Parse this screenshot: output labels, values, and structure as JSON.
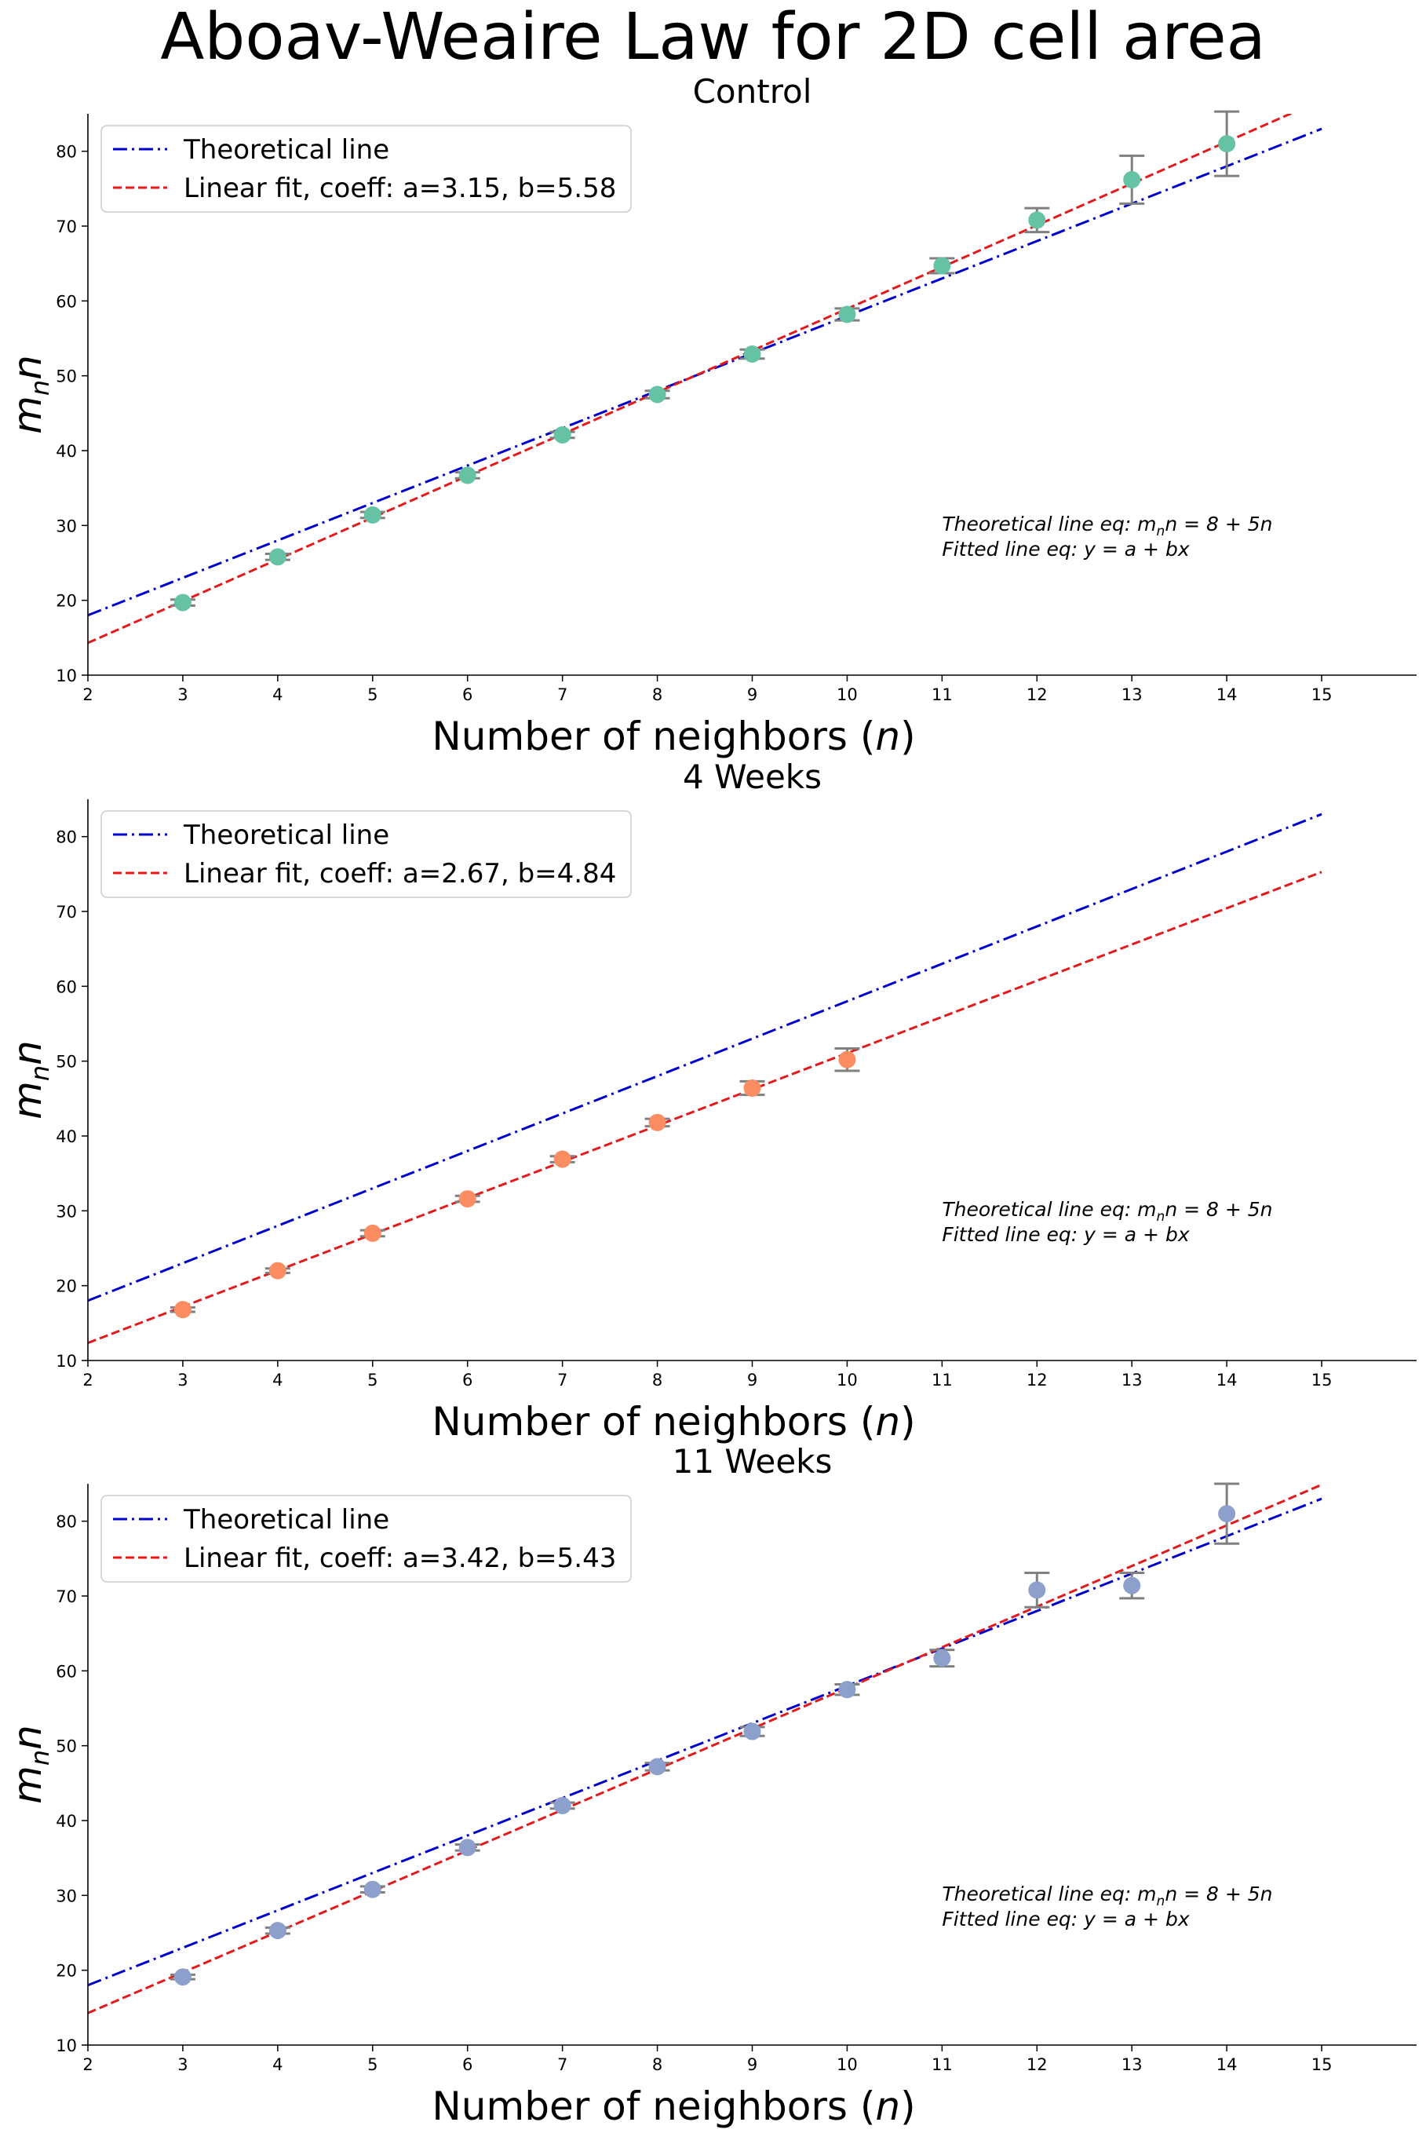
{
  "figure": {
    "title": "Aboav-Weaire Law for 2D cell area"
  },
  "chart_data": [
    {
      "type": "scatter",
      "title": "Control",
      "xlabel": "Number of neighbors (n)",
      "ylabel": "m_n n",
      "xlim": [
        2,
        16
      ],
      "ylim": [
        10,
        85
      ],
      "xticks": [
        2,
        3,
        4,
        5,
        6,
        7,
        8,
        9,
        10,
        11,
        12,
        13,
        14,
        15
      ],
      "yticks": [
        10,
        20,
        30,
        40,
        50,
        60,
        70,
        80
      ],
      "point_color": "#66c2a5",
      "points": {
        "x": [
          3,
          4,
          5,
          6,
          7,
          8,
          9,
          10,
          11,
          12,
          13,
          14
        ],
        "y": [
          19.7,
          25.8,
          31.4,
          36.7,
          42.1,
          47.5,
          52.9,
          58.2,
          64.7,
          70.8,
          76.2,
          81.0
        ],
        "err": [
          0.4,
          0.4,
          0.4,
          0.4,
          0.4,
          0.5,
          0.6,
          0.8,
          1.0,
          1.6,
          3.2,
          4.3
        ]
      },
      "series": [
        {
          "name": "Theoretical line",
          "style": "dashdot",
          "color": "#0000cc",
          "a": 8,
          "b": 5,
          "x_range": [
            2,
            15
          ]
        },
        {
          "name": "Linear fit, coeff: a=3.15, b=5.58",
          "style": "dashed",
          "color": "#e31a1c",
          "a": 3.15,
          "b": 5.58,
          "x_range": [
            2,
            15
          ]
        }
      ],
      "annotation": [
        "Theoretical line eq: m",
        "n",
        "n = 8 + 5n",
        "Fitted line eq: y = a + bx"
      ],
      "legend_position": "upper-left"
    },
    {
      "type": "scatter",
      "title": "4 Weeks",
      "xlabel": "Number of neighbors (n)",
      "ylabel": "m_n n",
      "xlim": [
        2,
        16
      ],
      "ylim": [
        10,
        85
      ],
      "xticks": [
        2,
        3,
        4,
        5,
        6,
        7,
        8,
        9,
        10,
        11,
        12,
        13,
        14,
        15
      ],
      "yticks": [
        10,
        20,
        30,
        40,
        50,
        60,
        70,
        80
      ],
      "point_color": "#fc8d62",
      "points": {
        "x": [
          3,
          4,
          5,
          6,
          7,
          8,
          9,
          10
        ],
        "y": [
          16.8,
          22.0,
          27.0,
          31.6,
          36.9,
          41.8,
          46.4,
          50.2
        ],
        "err": [
          0.3,
          0.3,
          0.4,
          0.4,
          0.4,
          0.5,
          0.9,
          1.5
        ]
      },
      "series": [
        {
          "name": "Theoretical line",
          "style": "dashdot",
          "color": "#0000cc",
          "a": 8,
          "b": 5,
          "x_range": [
            2,
            15
          ]
        },
        {
          "name": "Linear fit, coeff: a=2.67, b=4.84",
          "style": "dashed",
          "color": "#e31a1c",
          "a": 2.67,
          "b": 4.84,
          "x_range": [
            2,
            15
          ]
        }
      ],
      "annotation": [
        "Theoretical line eq: m",
        "n",
        "n = 8 + 5n",
        "Fitted line eq: y = a + bx"
      ],
      "legend_position": "upper-left"
    },
    {
      "type": "scatter",
      "title": "11 Weeks",
      "xlabel": "Number of neighbors (n)",
      "ylabel": "m_n n",
      "xlim": [
        2,
        16
      ],
      "ylim": [
        10,
        85
      ],
      "xticks": [
        2,
        3,
        4,
        5,
        6,
        7,
        8,
        9,
        10,
        11,
        12,
        13,
        14,
        15
      ],
      "yticks": [
        10,
        20,
        30,
        40,
        50,
        60,
        70,
        80
      ],
      "point_color": "#8da0cb",
      "points": {
        "x": [
          3,
          4,
          5,
          6,
          7,
          8,
          9,
          10,
          11,
          12,
          13,
          14
        ],
        "y": [
          19.1,
          25.3,
          30.8,
          36.4,
          42.0,
          47.2,
          51.9,
          57.5,
          61.7,
          70.8,
          71.4,
          81.0
        ],
        "err": [
          0.3,
          0.4,
          0.4,
          0.4,
          0.4,
          0.5,
          0.6,
          0.7,
          1.1,
          2.3,
          1.7,
          4.0
        ]
      },
      "series": [
        {
          "name": "Theoretical line",
          "style": "dashdot",
          "color": "#0000cc",
          "a": 8,
          "b": 5,
          "x_range": [
            2,
            15
          ]
        },
        {
          "name": "Linear fit, coeff: a=3.42, b=5.43",
          "style": "dashed",
          "color": "#e31a1c",
          "a": 3.42,
          "b": 5.43,
          "x_range": [
            2,
            15
          ]
        }
      ],
      "annotation": [
        "Theoretical line eq: m",
        "n",
        "n = 8 + 5n",
        "Fitted line eq: y = a + bx"
      ],
      "legend_position": "upper-left"
    }
  ]
}
